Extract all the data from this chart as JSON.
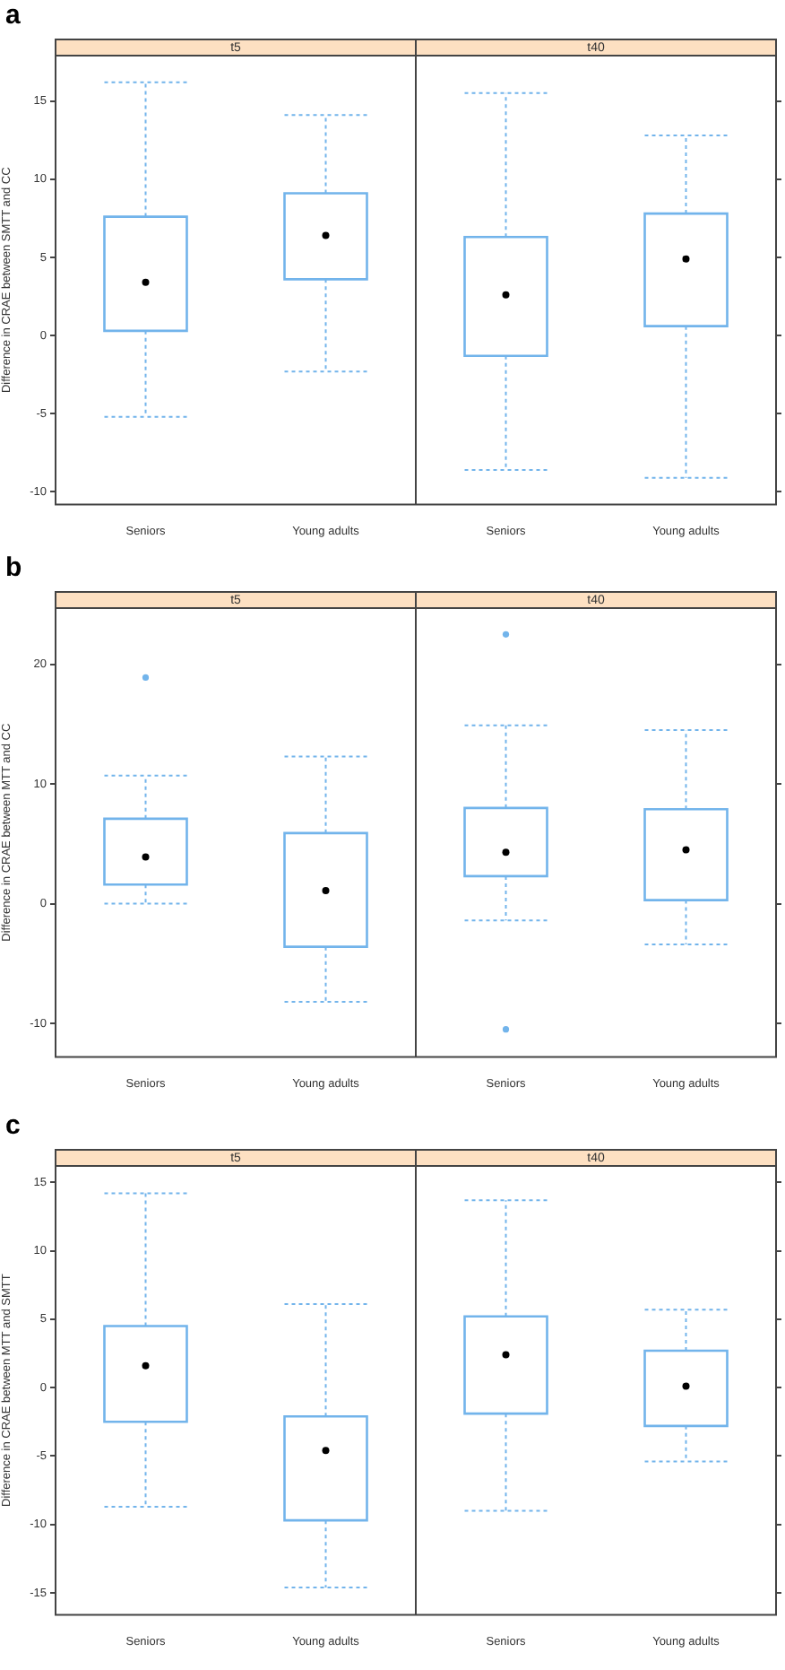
{
  "chart_data": [
    {
      "type": "box",
      "title": "t5",
      "annotations": [
        "a"
      ],
      "ylabel": "Difference in CRAE between SMTT and CC",
      "categories": [
        "Seniors",
        "Young adults"
      ],
      "ylim": [
        -10.8,
        17.9
      ],
      "yticks": [
        -10,
        -5,
        0,
        5,
        10,
        15
      ],
      "legend": false,
      "series": [
        {
          "color": "#72b4eb",
          "boxes": [
            {
              "low": -5.2,
              "q1": 0.3,
              "median": 3.4,
              "q3": 7.6,
              "high": 16.2
            },
            {
              "low": -2.3,
              "q1": 3.6,
              "median": 6.4,
              "q3": 9.1,
              "high": 14.1
            }
          ]
        }
      ]
    },
    {
      "type": "box",
      "title": "t40",
      "categories": [
        "Seniors",
        "Young adults"
      ],
      "ylim": [
        -10.8,
        17.9
      ],
      "yticks": [
        -10,
        -5,
        0,
        5,
        10,
        15
      ],
      "tick_labels": "x",
      "legend": false,
      "series": [
        {
          "color": "#72b4eb",
          "boxes": [
            {
              "low": -8.6,
              "q1": -1.3,
              "median": 2.6,
              "q3": 6.3,
              "high": 15.5
            },
            {
              "low": -9.1,
              "q1": 0.6,
              "median": 4.9,
              "q3": 7.8,
              "high": 12.8
            }
          ]
        }
      ]
    },
    {
      "type": "box",
      "title": "t5",
      "annotations": [
        "b"
      ],
      "ylabel": "Difference in CRAE between MTT and CC",
      "categories": [
        "Seniors",
        "Young adults"
      ],
      "ylim": [
        -12.8,
        24.7
      ],
      "yticks": [
        -10,
        0,
        10,
        20
      ],
      "legend": false,
      "series": [
        {
          "color": "#72b4eb",
          "boxes": [
            {
              "low": 0.0,
              "q1": 1.6,
              "median": 3.9,
              "q3": 7.1,
              "high": 10.7,
              "outliers": [
                18.9
              ]
            },
            {
              "low": -8.2,
              "q1": -3.6,
              "median": 1.1,
              "q3": 5.9,
              "high": 12.3
            }
          ]
        }
      ]
    },
    {
      "type": "box",
      "title": "t40",
      "categories": [
        "Seniors",
        "Young adults"
      ],
      "ylim": [
        -12.8,
        24.7
      ],
      "yticks": [
        -10,
        0,
        10,
        20
      ],
      "tick_labels": "x",
      "legend": false,
      "series": [
        {
          "color": "#72b4eb",
          "boxes": [
            {
              "low": -1.4,
              "q1": 2.3,
              "median": 4.3,
              "q3": 8.0,
              "high": 14.9,
              "outliers": [
                22.5,
                -10.5
              ]
            },
            {
              "low": -3.4,
              "q1": 0.3,
              "median": 4.5,
              "q3": 7.9,
              "high": 14.5
            }
          ]
        }
      ]
    },
    {
      "type": "box",
      "title": "t5",
      "annotations": [
        "c"
      ],
      "ylabel": "Difference in CRAE between MTT and SMTT",
      "categories": [
        "Seniors",
        "Young adults"
      ],
      "ylim": [
        -16.6,
        16.2
      ],
      "yticks": [
        -15,
        -10,
        -5,
        0,
        5,
        10,
        15
      ],
      "legend": false,
      "series": [
        {
          "color": "#72b4eb",
          "boxes": [
            {
              "low": -8.7,
              "q1": -2.5,
              "median": 1.6,
              "q3": 4.5,
              "high": 14.2
            },
            {
              "low": -14.6,
              "q1": -9.7,
              "median": -4.6,
              "q3": -2.1,
              "high": 6.1
            }
          ]
        }
      ]
    },
    {
      "type": "box",
      "title": "t40",
      "categories": [
        "Seniors",
        "Young adults"
      ],
      "ylim": [
        -16.6,
        16.2
      ],
      "yticks": [
        -15,
        -10,
        -5,
        0,
        5,
        10,
        15
      ],
      "tick_labels": "x",
      "legend": false,
      "series": [
        {
          "color": "#72b4eb",
          "boxes": [
            {
              "low": -9.0,
              "q1": -1.9,
              "median": 2.4,
              "q3": 5.2,
              "high": 13.7
            },
            {
              "low": -5.4,
              "q1": -2.8,
              "median": 0.1,
              "q3": 2.7,
              "high": 5.7
            }
          ]
        }
      ]
    }
  ]
}
